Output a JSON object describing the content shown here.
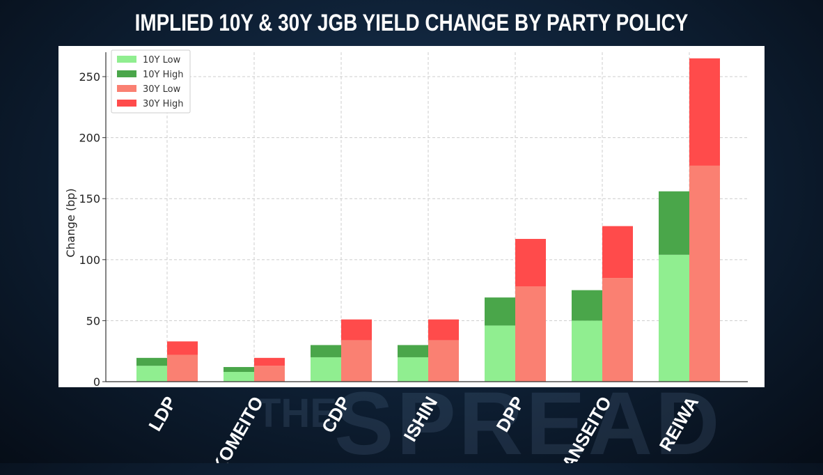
{
  "header": {
    "title": "IMPLIED 10Y & 30Y JGB YIELD CHANGE BY PARTY POLICY"
  },
  "watermark": {
    "small": "THE",
    "big": "SPREAD"
  },
  "chart_data": {
    "type": "bar",
    "stacked": true,
    "title": "IMPLIED 10Y & 30Y JGB YIELD CHANGE BY PARTY POLICY",
    "xlabel": "",
    "ylabel": "Change (bp)",
    "ylim": [
      0,
      270
    ],
    "yticks": [
      0,
      50,
      100,
      150,
      200,
      250
    ],
    "grid": true,
    "legend_position": "top-left",
    "categories": [
      "LDP",
      "KOMEITO",
      "CDP",
      "ISHIN",
      "DPP",
      "SANSEITO",
      "REIWA"
    ],
    "groups": [
      {
        "name": "10Y",
        "series": [
          {
            "name": "10Y Low",
            "color": "#90ee90",
            "values": [
              13,
              8,
              20,
              20,
              46,
              50,
              104
            ]
          },
          {
            "name": "10Y High",
            "color": "#4aa64a",
            "values": [
              6.5,
              4,
              10,
              10,
              23,
              25,
              52
            ]
          }
        ]
      },
      {
        "name": "30Y",
        "series": [
          {
            "name": "30Y Low",
            "color": "#fa8072",
            "values": [
              22,
              13,
              34,
              34,
              78,
              85,
              177
            ]
          },
          {
            "name": "30Y High",
            "color": "#ff4b4b",
            "values": [
              11,
              6.5,
              17,
              17,
              39,
              42.5,
              88
            ]
          }
        ]
      }
    ]
  }
}
